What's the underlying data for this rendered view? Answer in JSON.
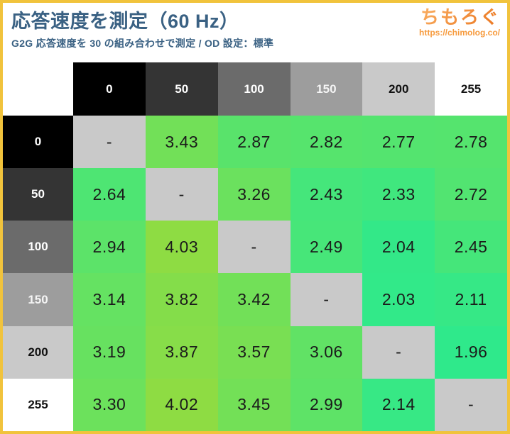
{
  "page": {
    "border_color": "#f1c33c",
    "background": "#ffffff"
  },
  "header": {
    "title": "応答速度を測定（60 Hz）",
    "subtitle": "G2G 応答速度を 30 の組み合わせで測定 / OD 設定：標準",
    "title_color": "#3a6183"
  },
  "logo": {
    "name": "ちもろぐ",
    "url": "https://chimolog.co/",
    "gradient_top": "#f8a95c",
    "gradient_bottom": "#ec7b26",
    "url_color": "#f79b3e"
  },
  "chart_data": {
    "type": "heatmap",
    "title": "応答速度を測定（60 Hz）",
    "subtitle": "G2G 応答速度を 30 の組み合わせで測定 / OD 設定：標準",
    "columns": [
      "0",
      "50",
      "100",
      "150",
      "200",
      "255"
    ],
    "rows": [
      "0",
      "50",
      "100",
      "150",
      "200",
      "255"
    ],
    "values": [
      [
        null,
        3.43,
        2.87,
        2.82,
        2.77,
        2.78
      ],
      [
        2.64,
        null,
        3.26,
        2.43,
        2.33,
        2.72
      ],
      [
        2.94,
        4.03,
        null,
        2.49,
        2.04,
        2.45
      ],
      [
        3.14,
        3.82,
        3.42,
        null,
        2.03,
        2.11
      ],
      [
        3.19,
        3.87,
        3.57,
        3.06,
        null,
        1.96
      ],
      [
        3.3,
        4.02,
        3.45,
        2.99,
        2.14,
        null
      ]
    ],
    "null_display": "-",
    "value_decimals": 2,
    "color_scale": {
      "min": 1.96,
      "max": 4.03,
      "low_color": "#2fe98b",
      "high_color": "#8edc43",
      "null_color": "#c9c9c9"
    },
    "header_shades": [
      "#000000",
      "#343434",
      "#6b6b6b",
      "#9d9d9d",
      "#c9c9c9",
      "#ffffff"
    ],
    "header_text_colors": [
      "#ffffff",
      "#ffffff",
      "#ffffff",
      "#f5f5f5",
      "#111111",
      "#111111"
    ]
  }
}
